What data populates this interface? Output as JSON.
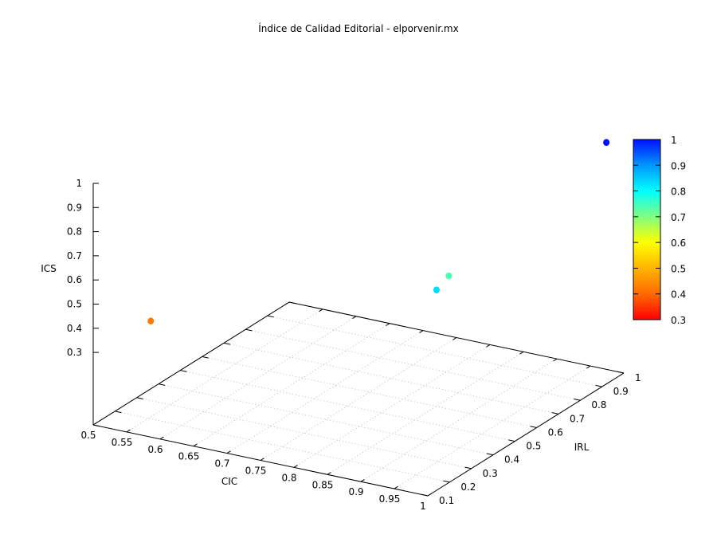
{
  "chart_data": {
    "type": "scatter3d",
    "title": "Índice de Calidad Editorial - elporvenir.mx",
    "xlabel": "CIC",
    "ylabel": "IRL",
    "zlabel": "ICS",
    "xlim": [
      0.5,
      1
    ],
    "ylim": [
      0.1,
      1
    ],
    "zlim": [
      0.3,
      1
    ],
    "cblim": [
      0.3,
      1
    ],
    "grid": true,
    "legend": "none",
    "colorbar": "right",
    "x_ticks": [
      "0.5",
      "0.55",
      "0.6",
      "0.65",
      "0.7",
      "0.75",
      "0.8",
      "0.85",
      "0.9",
      "0.95",
      "1"
    ],
    "y_ticks": [
      "0.1",
      "0.2",
      "0.3",
      "0.4",
      "0.5",
      "0.6",
      "0.7",
      "0.8",
      "0.9",
      "1"
    ],
    "z_ticks": [
      "0.3",
      "0.4",
      "0.5",
      "0.6",
      "0.7",
      "0.8",
      "0.9",
      "1"
    ],
    "cb_ticks": [
      "0.3",
      "0.4",
      "0.5",
      "0.6",
      "0.7",
      "0.8",
      "0.9",
      "1"
    ],
    "palette": [
      "#ff0000",
      "#ff6a00",
      "#ffb400",
      "#ffff00",
      "#80ff80",
      "#00ffff",
      "#0096ff",
      "#0010ff"
    ],
    "points": [
      {
        "x": 0.56,
        "y": 0.18,
        "z": 0.42,
        "color_value": 0.42
      },
      {
        "x": 1.0,
        "y": 0.14,
        "z": 0.83,
        "color_value": 0.83
      },
      {
        "x": 0.95,
        "y": 0.35,
        "z": 0.74,
        "color_value": 0.74
      },
      {
        "x": 1.0,
        "y": 0.92,
        "z": 1.0,
        "color_value": 1.0
      }
    ]
  }
}
